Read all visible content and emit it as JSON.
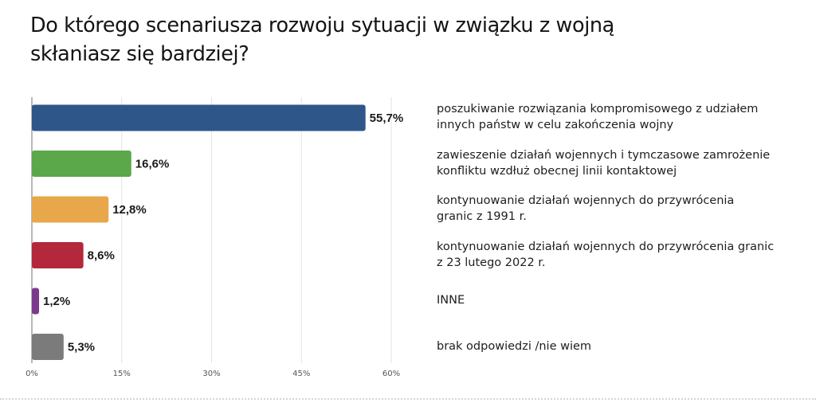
{
  "chart_data": {
    "type": "bar",
    "orientation": "horizontal",
    "title": "Do którego scenariusza rozwoju sytuacji w związku z wojną skłaniasz się bardziej?",
    "title_lines": [
      "Do którego scenariusza rozwoju sytuacji w związku z wojną",
      "skłaniasz się bardziej?"
    ],
    "categories": [
      "poszukiwanie rozwiązania kompromisowego z udziałem\ninnych państw w celu zakończenia wojny",
      "zawieszenie działań wojennych i tymczasowe zamrożenie\nkonfliktu wzdłuż obecnej linii kontaktowej",
      "kontynuowanie działań wojennych do przywrócenia\ngranic z 1991 r.",
      "kontynuowanie działań wojennych do przywrócenia granic\nz 23 lutego 2022 r.",
      "INNE",
      "brak odpowiedzi /nie wiem"
    ],
    "values": [
      55.7,
      16.6,
      12.8,
      8.6,
      1.2,
      5.3
    ],
    "value_labels": [
      "55,7%",
      "16,6%",
      "12,8%",
      "8,6%",
      "1,2%",
      "5,3%"
    ],
    "colors": [
      "#2e5689",
      "#5ba84a",
      "#e8a74a",
      "#b3283a",
      "#7c3a8e",
      "#7b7b7b"
    ],
    "xaxis": {
      "ticks": [
        0,
        15,
        30,
        45,
        60
      ],
      "tick_labels": [
        "0%",
        "15%",
        "30%",
        "45%",
        "60%"
      ],
      "xlim": [
        0,
        60
      ]
    },
    "grid": true,
    "legend_placement": "right",
    "xlabel": "",
    "ylabel": ""
  }
}
